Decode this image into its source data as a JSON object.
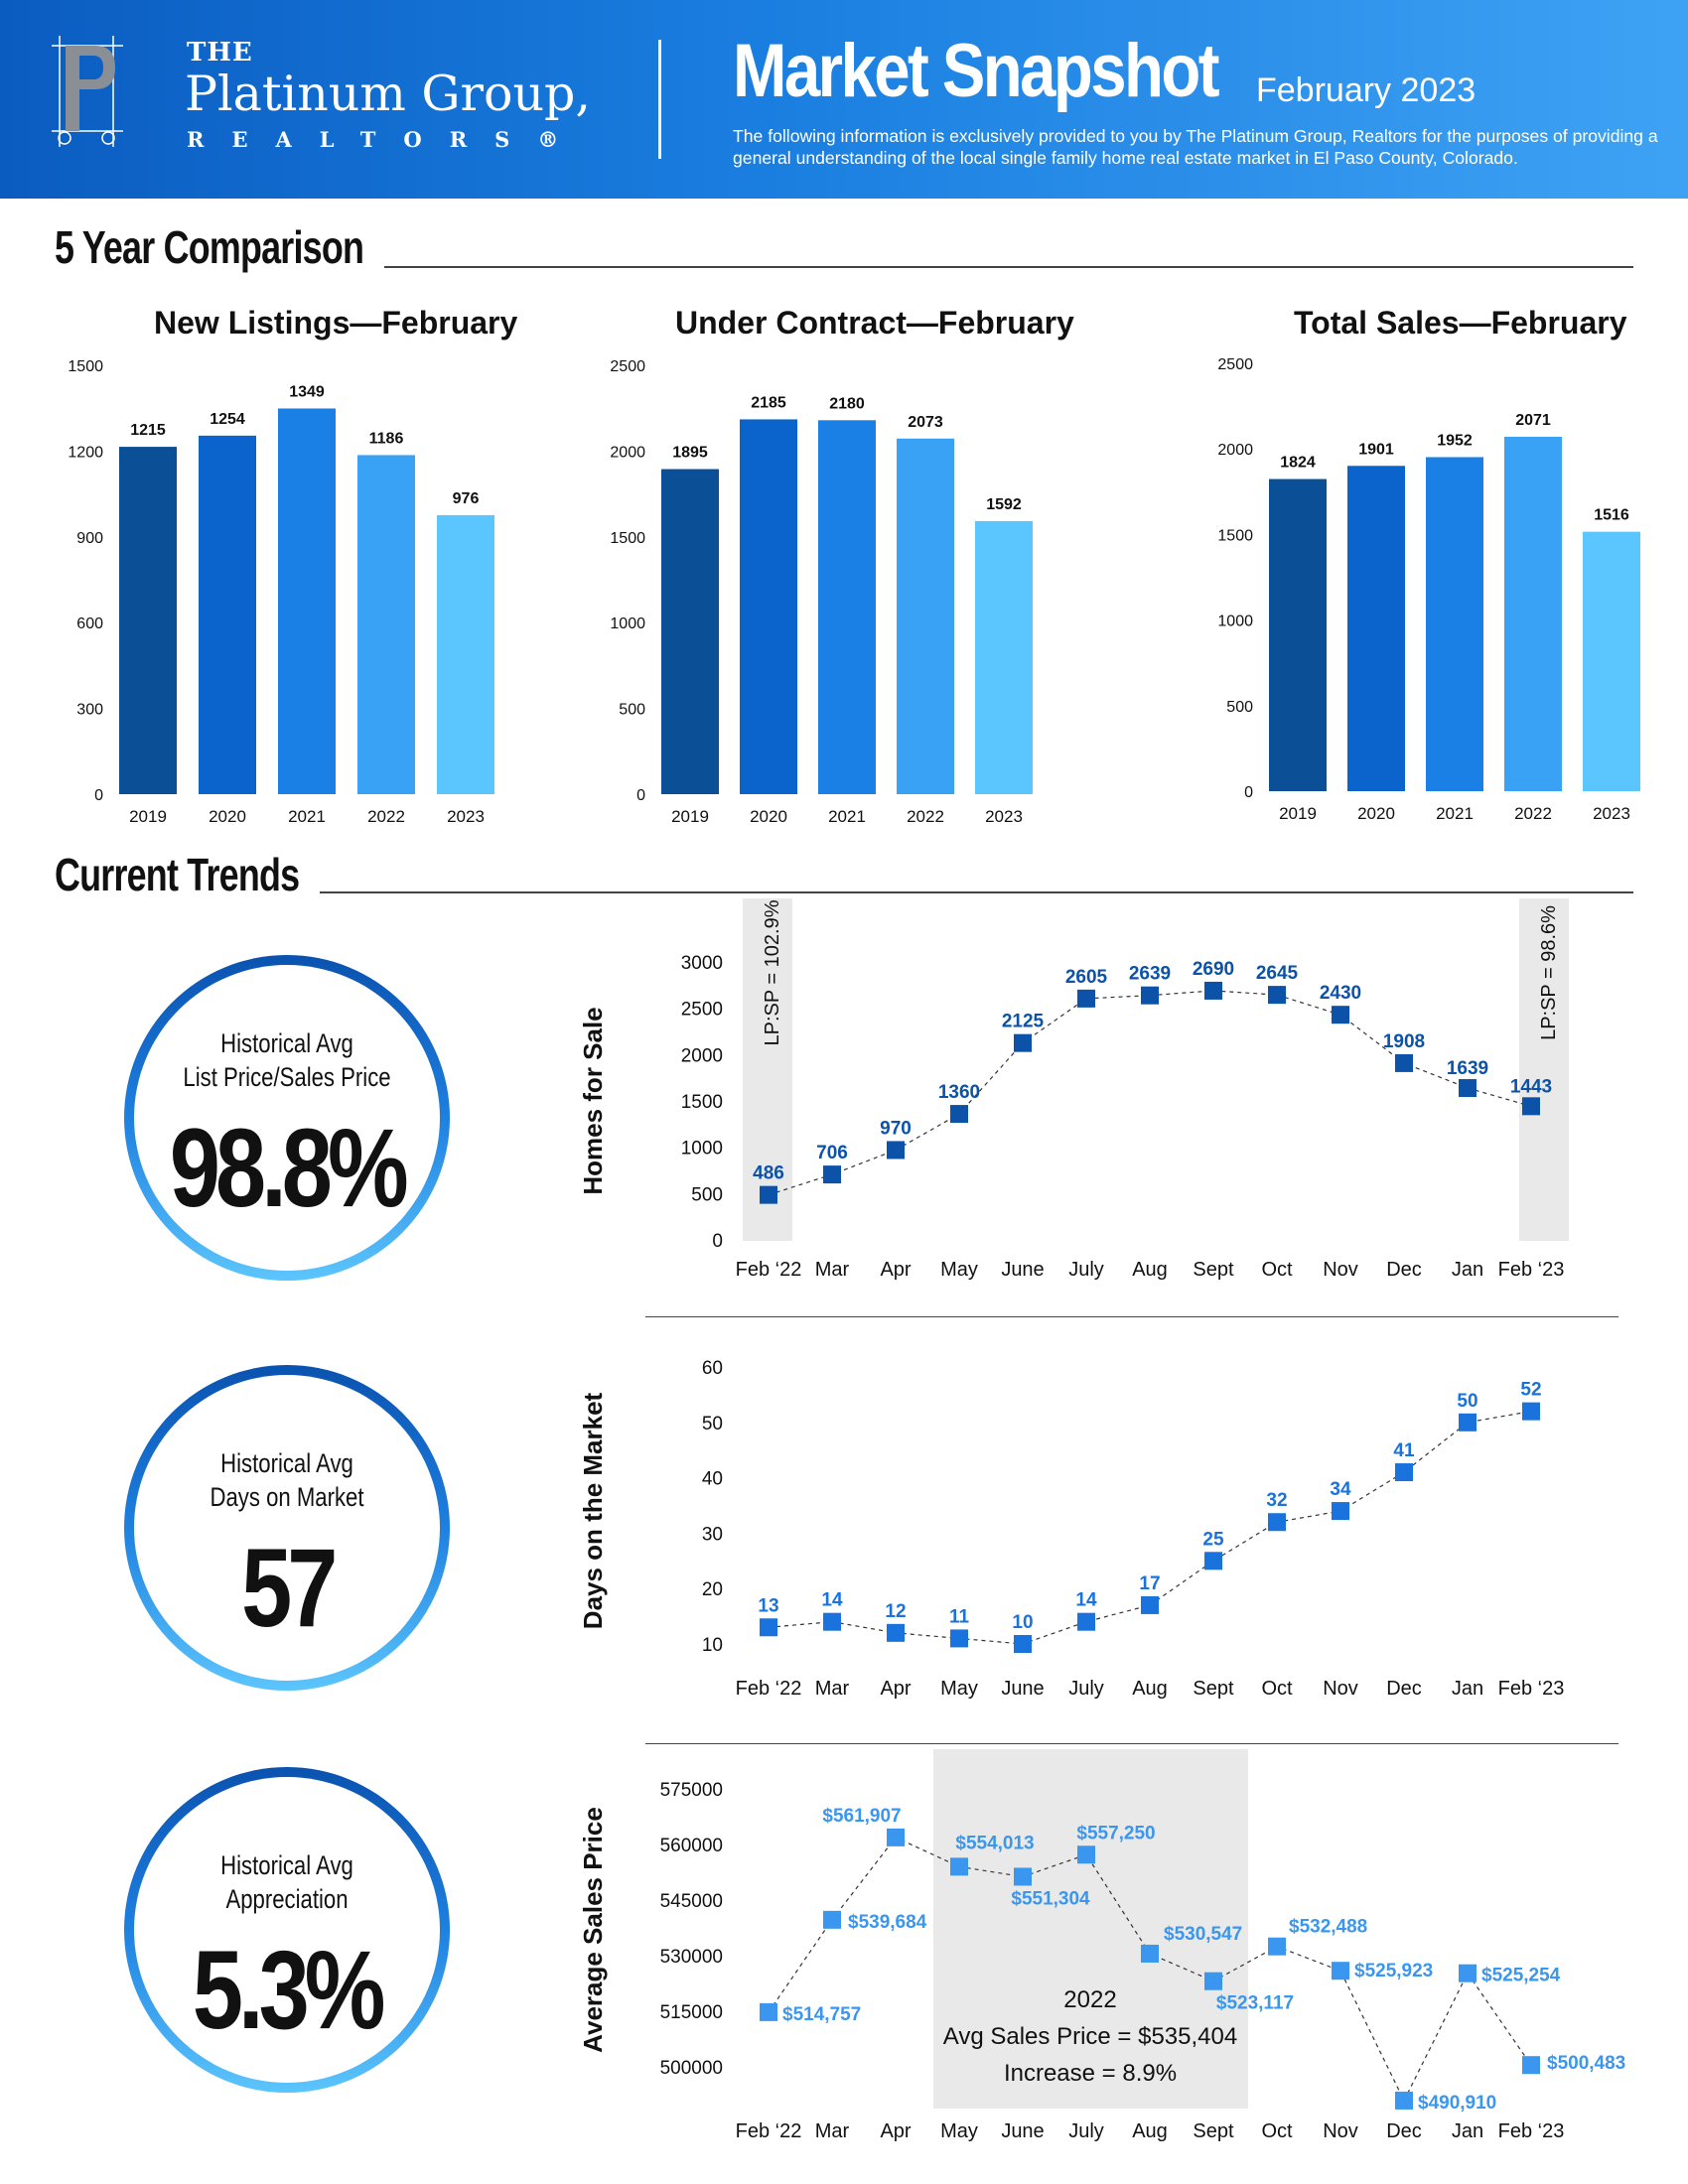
{
  "header": {
    "logo_the": "THE",
    "logo_name": "Platinum Group,",
    "logo_realtors": "REALTORS®",
    "title": "Market Snapshot",
    "date": "February 2023",
    "description": "The following information is exclusively provided to you by The Platinum Group, Realtors for the purposes of providing a general understanding of the local single family home real estate market in El Paso County, Colorado."
  },
  "sections": {
    "five_year": "5 Year Comparison",
    "current_trends": "Current Trends"
  },
  "stats": [
    {
      "label_line1": "Historical Avg",
      "label_line2": "List Price/Sales Price",
      "value": "98.8%"
    },
    {
      "label_line1": "Historical Avg",
      "label_line2": "Days on Market",
      "value": "57"
    },
    {
      "label_line1": "Historical Avg",
      "label_line2": "Appreciation",
      "value": "5.3%"
    }
  ],
  "colors": {
    "bar_gradient": [
      "#0b4f96",
      "#0a64cc",
      "#1a80e6",
      "#3aa2f4",
      "#5ac6fd"
    ],
    "line_dark": "#0b4f96",
    "line_mid": "#1a6fd4",
    "line_light": "#3aa2f4",
    "highlight_band": "#e8e9e8"
  },
  "chart_data": [
    {
      "type": "bar",
      "title": "New Listings—February",
      "categories": [
        "2019",
        "2020",
        "2021",
        "2022",
        "2023"
      ],
      "values": [
        1215,
        1254,
        1349,
        1186,
        976
      ],
      "yticks": [
        "0",
        "300",
        "600",
        "900",
        "1200",
        "1500"
      ],
      "ylim": [
        0,
        1500
      ]
    },
    {
      "type": "bar",
      "title": "Under Contract—February",
      "categories": [
        "2019",
        "2020",
        "2021",
        "2022",
        "2023"
      ],
      "values": [
        1895,
        2185,
        2180,
        2073,
        1592
      ],
      "yticks": [
        "0",
        "500",
        "1000",
        "1500",
        "2000",
        "2500"
      ],
      "ylim": [
        0,
        2500
      ]
    },
    {
      "type": "bar",
      "title": "Total Sales—February",
      "categories": [
        "2019",
        "2020",
        "2021",
        "2022",
        "2023"
      ],
      "values": [
        1824,
        1901,
        1952,
        2071,
        1516
      ],
      "yticks": [
        "0",
        "500",
        "1000",
        "1500",
        "2000",
        "2500"
      ],
      "ylim": [
        0,
        2500
      ]
    },
    {
      "type": "line",
      "ylabel": "Homes for Sale",
      "categories": [
        "Feb ‘22",
        "Mar",
        "Apr",
        "May",
        "June",
        "July",
        "Aug",
        "Sept",
        "Oct",
        "Nov",
        "Dec",
        "Jan",
        "Feb ‘23"
      ],
      "values": [
        486,
        706,
        970,
        1360,
        2125,
        2605,
        2639,
        2690,
        2645,
        2430,
        1908,
        1639,
        1443
      ],
      "labels": [
        "486",
        "706",
        "970",
        "1360",
        "2125",
        "2605",
        "2639",
        "2690",
        "2645",
        "2430",
        "1908",
        "1639",
        "1443"
      ],
      "yticks": [
        "0",
        "500",
        "1000",
        "1500",
        "2000",
        "2500",
        "3000"
      ],
      "ylim": [
        0,
        3000
      ],
      "band_left_label": "LP:SP = 102.9%",
      "band_right_label": "LP:SP = 98.6%"
    },
    {
      "type": "line",
      "ylabel": "Days on the Market",
      "categories": [
        "Feb ‘22",
        "Mar",
        "Apr",
        "May",
        "June",
        "July",
        "Aug",
        "Sept",
        "Oct",
        "Nov",
        "Dec",
        "Jan",
        "Feb ‘23"
      ],
      "values": [
        13,
        14,
        12,
        11,
        10,
        14,
        17,
        25,
        32,
        34,
        41,
        50,
        52
      ],
      "labels": [
        "13",
        "14",
        "12",
        "11",
        "10",
        "14",
        "17",
        "25",
        "32",
        "34",
        "41",
        "50",
        "52"
      ],
      "yticks": [
        "10",
        "20",
        "30",
        "40",
        "50",
        "60"
      ],
      "ylim": [
        10,
        60
      ]
    },
    {
      "type": "line",
      "ylabel": "Average Sales Price",
      "categories": [
        "Feb ‘22",
        "Mar",
        "Apr",
        "May",
        "June",
        "July",
        "Aug",
        "Sept",
        "Oct",
        "Nov",
        "Dec",
        "Jan",
        "Feb ‘23"
      ],
      "values": [
        514757,
        539684,
        561907,
        554013,
        551304,
        557250,
        530547,
        523117,
        532488,
        525923,
        490910,
        525254,
        500483
      ],
      "labels": [
        "$514,757",
        "$539,684",
        "$561,907",
        "$554,013",
        "$551,304",
        "$557,250",
        "$530,547",
        "$523,117",
        "$532,488",
        "$525,923",
        "$490,910",
        "$525,254",
        "$500,483"
      ],
      "yticks": [
        "500000",
        "515000",
        "530000",
        "545000",
        "560000",
        "575000"
      ],
      "ylim": [
        500000,
        575000
      ],
      "band_lines": [
        "2022",
        "Avg Sales Price = $535,404",
        "Increase = 8.9%"
      ]
    }
  ]
}
